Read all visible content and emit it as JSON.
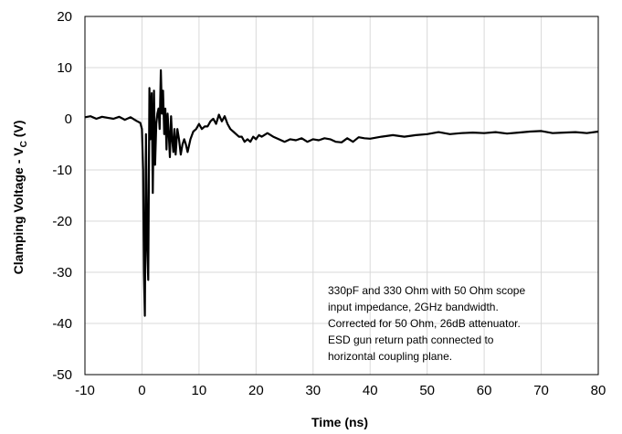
{
  "chart_data": {
    "type": "line",
    "xlabel": "Time (ns)",
    "ylabel_main": "Clamping Voltage - V",
    "ylabel_sub": "C",
    "ylabel_tail": " (V)",
    "xlim": [
      -10,
      80
    ],
    "ylim": [
      -50,
      20
    ],
    "x_ticks": [
      -10,
      0,
      10,
      20,
      30,
      40,
      50,
      60,
      70,
      80
    ],
    "y_ticks": [
      20,
      10,
      0,
      -10,
      -20,
      -30,
      -40,
      -50
    ],
    "grid": true,
    "line_color": "#000000",
    "grid_color": "#d9d9d9",
    "annotation": [
      "330pF and 330 Ohm with 50 Ohm scope",
      "input impedance, 2GHz bandwidth.",
      "Corrected for 50 Ohm, 26dB attenuator.",
      "ESD gun return path connected to",
      "horizontal coupling plane."
    ],
    "series": [
      {
        "x": [
          -10,
          -9,
          -8,
          -7,
          -6,
          -5,
          -4,
          -3,
          -2,
          -1,
          -0.3,
          0.0,
          0.2,
          0.35,
          0.5,
          0.7,
          0.9,
          1.1,
          1.3,
          1.5,
          1.7,
          1.9,
          2.1,
          2.3,
          2.5,
          2.7,
          2.9,
          3.1,
          3.3,
          3.5,
          3.7,
          3.9,
          4.1,
          4.3,
          4.5,
          4.7,
          4.9,
          5.1,
          5.3,
          5.5,
          5.7,
          5.9,
          6.2,
          6.5,
          6.8,
          7.1,
          7.4,
          7.7,
          8.0,
          8.5,
          9.0,
          9.5,
          10.0,
          10.5,
          11.0,
          11.5,
          12.0,
          12.5,
          13.0,
          13.5,
          14.0,
          14.5,
          15.0,
          15.5,
          16.0,
          16.5,
          17.0,
          17.5,
          18.0,
          18.5,
          19.0,
          19.5,
          20.0,
          20.5,
          21.0,
          22,
          23,
          24,
          25,
          26,
          27,
          28,
          29,
          30,
          31,
          32,
          33,
          34,
          35,
          36,
          37,
          38,
          39,
          40,
          42,
          44,
          46,
          48,
          50,
          52,
          54,
          56,
          58,
          60,
          62,
          64,
          66,
          68,
          70,
          72,
          74,
          76,
          78,
          80
        ],
        "y": [
          0.3,
          0.5,
          0.0,
          0.4,
          0.2,
          0.0,
          0.4,
          -0.2,
          0.3,
          -0.4,
          -0.8,
          -2,
          -10,
          -30,
          -38.5,
          -3,
          -25,
          -31.5,
          6,
          -4,
          5,
          -14.5,
          5.5,
          -9,
          -1,
          1,
          2,
          -2,
          9.5,
          1,
          5.5,
          -3,
          2,
          -6,
          1,
          -3,
          -7.5,
          0.5,
          -4,
          -6.5,
          -2,
          -7,
          -2,
          -4,
          -7,
          -5,
          -4,
          -5,
          -6.5,
          -4,
          -2.5,
          -2,
          -1,
          -2,
          -1.5,
          -1.5,
          -0.5,
          0,
          -1,
          0.8,
          -0.5,
          0.5,
          -1,
          -2,
          -2.5,
          -3,
          -3.5,
          -3.5,
          -4.5,
          -4,
          -4.5,
          -3.5,
          -4,
          -3.2,
          -3.5,
          -2.8,
          -3.5,
          -4,
          -4.5,
          -4,
          -4.2,
          -3.8,
          -4.5,
          -4,
          -4.2,
          -3.8,
          -4,
          -4.5,
          -4.6,
          -3.8,
          -4.5,
          -3.6,
          -3.8,
          -3.9,
          -3.5,
          -3.2,
          -3.5,
          -3.2,
          -3,
          -2.6,
          -3,
          -2.8,
          -2.7,
          -2.8,
          -2.6,
          -2.9,
          -2.7,
          -2.5,
          -2.4,
          -2.8,
          -2.7,
          -2.6,
          -2.8,
          -2.5
        ]
      }
    ]
  }
}
